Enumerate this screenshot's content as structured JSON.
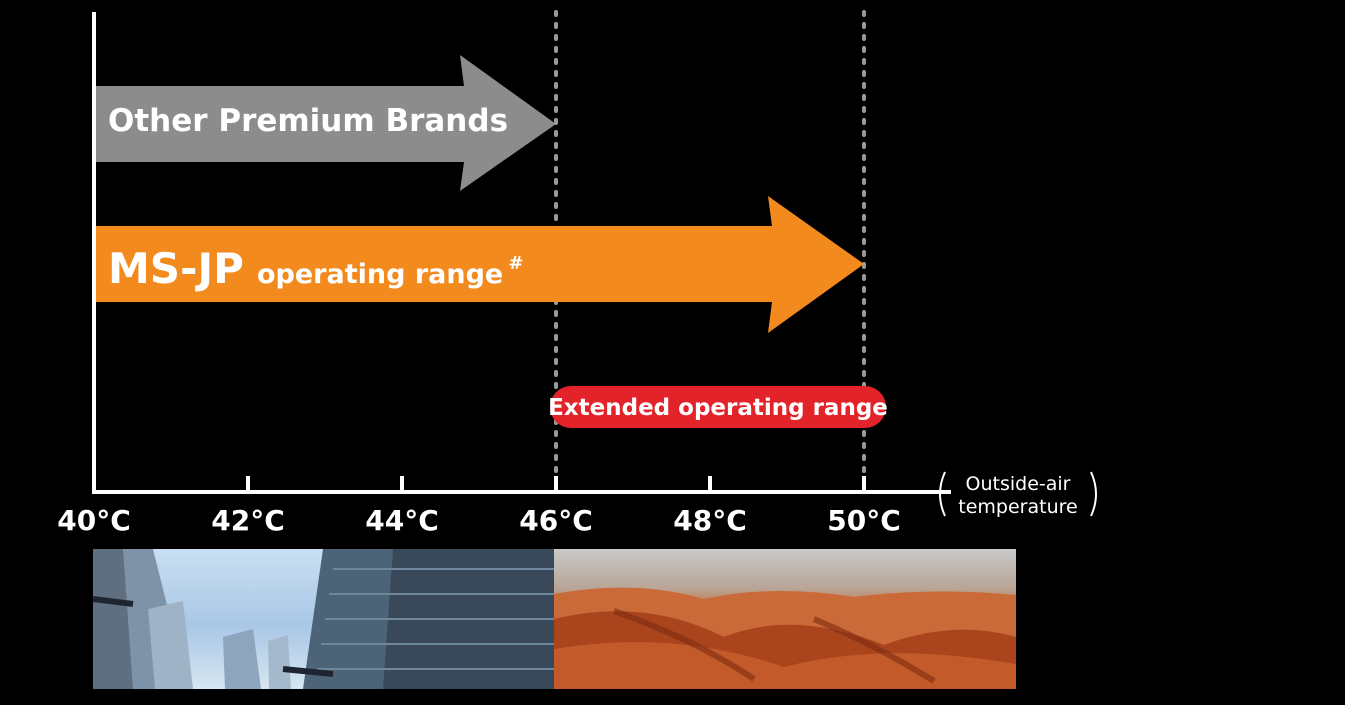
{
  "chart_data": {
    "type": "bar",
    "orientation": "horizontal",
    "xlim": [
      40,
      51
    ],
    "x_ticks": [
      40,
      42,
      44,
      46,
      48,
      50
    ],
    "x_tick_labels": [
      "40°C",
      "42°C",
      "44°C",
      "46°C",
      "48°C",
      "50°C"
    ],
    "xlabel_line1": "Outside-air",
    "xlabel_line2": "temperature",
    "series": [
      {
        "label": "Other Premium Brands",
        "start": 40,
        "end": 46,
        "color": "#8c8c8c"
      },
      {
        "label_main": "MS-JP",
        "label_sub": "operating range",
        "label_mark": "#",
        "start": 40,
        "end": 50,
        "color": "#f28a1e"
      }
    ],
    "reference_lines": [
      46,
      50
    ],
    "annotation": {
      "text": "Extended operating range",
      "from": 46,
      "to": 50,
      "color": "#e2232a"
    }
  },
  "colors": {
    "axis": "#ffffff",
    "background": "#000000",
    "dotted": "#9a9a9a"
  },
  "images": {
    "left": "city-buildings-photo",
    "right": "desert-dunes-photo"
  }
}
